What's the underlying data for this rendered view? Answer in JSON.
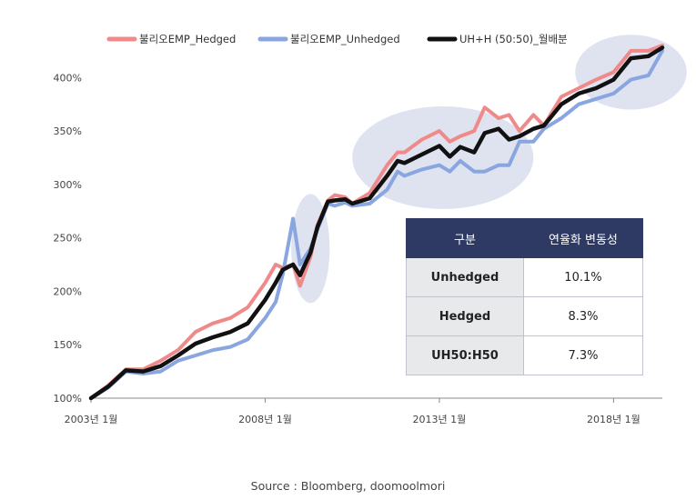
{
  "chart_data": {
    "type": "line",
    "legend_position": "top",
    "yticks": [
      "100%",
      "150%",
      "200%",
      "250%",
      "300%",
      "350%",
      "400%"
    ],
    "ylim": [
      100,
      430
    ],
    "xticks": [
      {
        "label": "2003년 1월",
        "x": 2003.0
      },
      {
        "label": "2008년 1월",
        "x": 2008.0
      },
      {
        "label": "2013년 1월",
        "x": 2013.0
      },
      {
        "label": "2018년 1월",
        "x": 2018.0
      }
    ],
    "xlim": [
      2003.0,
      2019.4
    ],
    "colors": {
      "hedged": "#f08a8a",
      "unhedged": "#8aa6e0",
      "mix": "#111111",
      "highlight": "#dfe2ef"
    },
    "series": [
      {
        "name": "불리오EMP_Hedged",
        "key": "hedged",
        "x": [
          2003.0,
          2003.5,
          2004.0,
          2004.5,
          2005.0,
          2005.5,
          2006.0,
          2006.5,
          2007.0,
          2007.5,
          2008.0,
          2008.3,
          2008.5,
          2008.8,
          2009.0,
          2009.3,
          2009.5,
          2009.8,
          2010.0,
          2010.3,
          2010.5,
          2011.0,
          2011.5,
          2011.8,
          2012.0,
          2012.5,
          2013.0,
          2013.3,
          2013.6,
          2014.0,
          2014.3,
          2014.7,
          2015.0,
          2015.3,
          2015.7,
          2016.0,
          2016.5,
          2017.0,
          2017.5,
          2018.0,
          2018.5,
          2019.0,
          2019.4
        ],
        "values": [
          100,
          112,
          127,
          127,
          135,
          145,
          162,
          170,
          175,
          185,
          208,
          225,
          222,
          225,
          205,
          232,
          262,
          285,
          290,
          288,
          282,
          292,
          318,
          330,
          330,
          342,
          350,
          340,
          345,
          350,
          372,
          362,
          365,
          350,
          365,
          355,
          382,
          390,
          398,
          405,
          425,
          425,
          430
        ]
      },
      {
        "name": "불리오EMP_Unhedged",
        "key": "unhedged",
        "x": [
          2003.0,
          2003.5,
          2004.0,
          2004.5,
          2005.0,
          2005.5,
          2006.0,
          2006.5,
          2007.0,
          2007.5,
          2008.0,
          2008.3,
          2008.5,
          2008.8,
          2009.0,
          2009.3,
          2009.5,
          2009.8,
          2010.0,
          2010.3,
          2010.5,
          2011.0,
          2011.5,
          2011.8,
          2012.0,
          2012.5,
          2013.0,
          2013.3,
          2013.6,
          2014.0,
          2014.3,
          2014.7,
          2015.0,
          2015.3,
          2015.7,
          2016.0,
          2016.5,
          2017.0,
          2017.5,
          2018.0,
          2018.5,
          2019.0,
          2019.4
        ],
        "values": [
          100,
          110,
          125,
          123,
          125,
          135,
          140,
          145,
          148,
          155,
          175,
          190,
          215,
          268,
          225,
          240,
          258,
          282,
          280,
          283,
          280,
          282,
          295,
          312,
          308,
          314,
          318,
          312,
          322,
          312,
          312,
          318,
          318,
          340,
          340,
          352,
          362,
          375,
          380,
          385,
          398,
          402,
          425
        ]
      },
      {
        "name": "UH+H (50:50)_월배분",
        "key": "mix",
        "x": [
          2003.0,
          2003.5,
          2004.0,
          2004.5,
          2005.0,
          2005.5,
          2006.0,
          2006.5,
          2007.0,
          2007.5,
          2008.0,
          2008.3,
          2008.5,
          2008.8,
          2009.0,
          2009.3,
          2009.5,
          2009.8,
          2010.0,
          2010.3,
          2010.5,
          2011.0,
          2011.5,
          2011.8,
          2012.0,
          2012.5,
          2013.0,
          2013.3,
          2013.6,
          2014.0,
          2014.3,
          2014.7,
          2015.0,
          2015.3,
          2015.7,
          2016.0,
          2016.5,
          2017.0,
          2017.5,
          2018.0,
          2018.5,
          2019.0,
          2019.4
        ],
        "values": [
          100,
          111,
          126,
          125,
          130,
          140,
          151,
          157,
          162,
          170,
          192,
          208,
          220,
          225,
          215,
          236,
          260,
          284,
          285,
          286,
          282,
          287,
          308,
          322,
          320,
          328,
          336,
          326,
          335,
          330,
          348,
          352,
          342,
          345,
          352,
          355,
          375,
          385,
          390,
          398,
          418,
          420,
          428
        ]
      }
    ],
    "highlights": [
      {
        "x_center": 2009.3,
        "x_radius": 0.55,
        "y_center": 240,
        "y_radius": 51
      },
      {
        "x_center": 2013.1,
        "x_radius": 2.6,
        "y_center": 325,
        "y_radius": 48
      },
      {
        "x_center": 2018.5,
        "x_radius": 1.6,
        "y_center": 405,
        "y_radius": 35
      }
    ]
  },
  "table": {
    "headers": [
      "구분",
      "연율화 변동성"
    ],
    "rows": [
      {
        "label": "Unhedged",
        "value": "10.1%"
      },
      {
        "label": "Hedged",
        "value": "8.3%"
      },
      {
        "label": "UH50:H50",
        "value": "7.3%"
      }
    ]
  },
  "source": "Source : Bloomberg, doomoolmori"
}
